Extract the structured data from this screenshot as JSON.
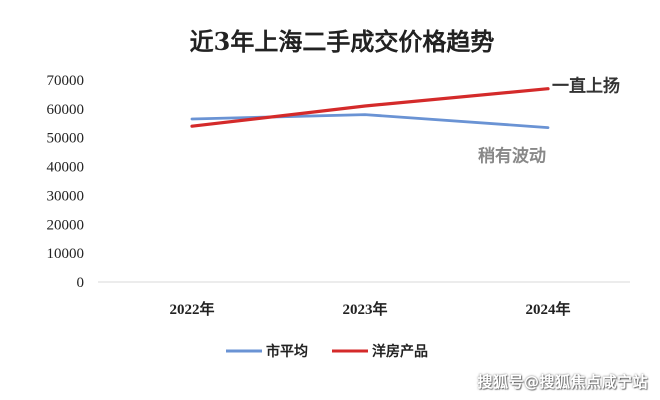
{
  "chart_data": {
    "type": "line",
    "title": "近3年上海二手成交价格趋势",
    "categories": [
      "2022年",
      "2023年",
      "2024年"
    ],
    "y_ticks": [
      0,
      10000,
      20000,
      30000,
      40000,
      50000,
      60000,
      70000
    ],
    "ylim": [
      0,
      70000
    ],
    "grid": false,
    "legend_position": "bottom",
    "series": [
      {
        "name": "市平均",
        "values": [
          56500,
          58000,
          53500
        ],
        "color": "#6a93d4"
      },
      {
        "name": "洋房产品",
        "values": [
          54000,
          61000,
          67000
        ],
        "color": "#d42a2a"
      }
    ],
    "annotations": [
      {
        "text": "一直上扬",
        "series": "洋房产品",
        "color": "#333333"
      },
      {
        "text": "稍有波动",
        "series": "市平均",
        "color": "#888888"
      }
    ]
  },
  "watermark": "搜狐号@搜狐焦点咸宁站"
}
